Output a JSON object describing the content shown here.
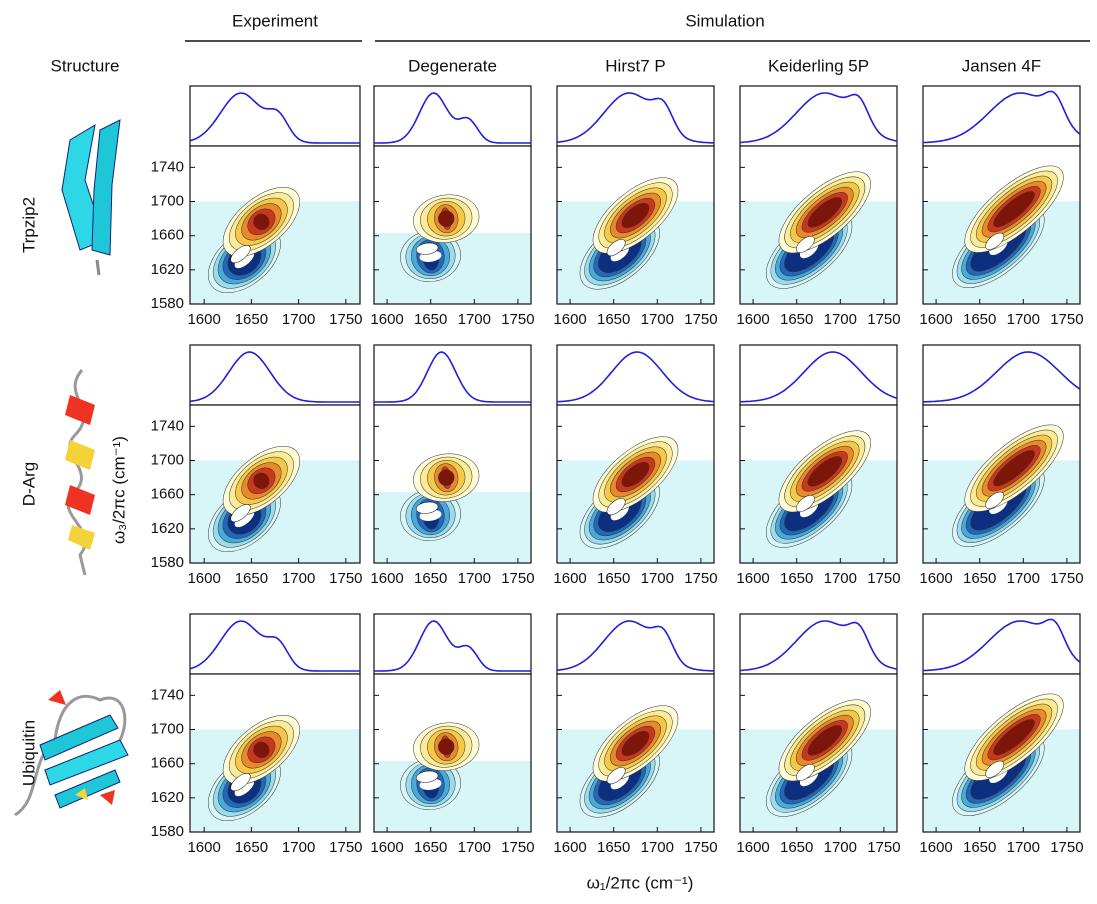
{
  "headers": {
    "experiment": "Experiment",
    "simulation": "Simulation",
    "structure": "Structure",
    "columns": [
      "Degenerate",
      "Hirst7 P",
      "Keiderling 5P",
      "Jansen 4F"
    ]
  },
  "rows": [
    "Trpzip2",
    "D-Arg",
    "Ubiquitin"
  ],
  "x_axis": {
    "label": "ω₁/2πc (cm⁻¹)",
    "ticks": [
      1600,
      1650,
      1700,
      1750
    ],
    "lim": [
      1585,
      1765
    ]
  },
  "y_axis": {
    "label": "ω₃/2πc (cm⁻¹)",
    "ticks": [
      1580,
      1620,
      1660,
      1700,
      1740
    ],
    "lim": [
      1580,
      1765
    ]
  }
}
